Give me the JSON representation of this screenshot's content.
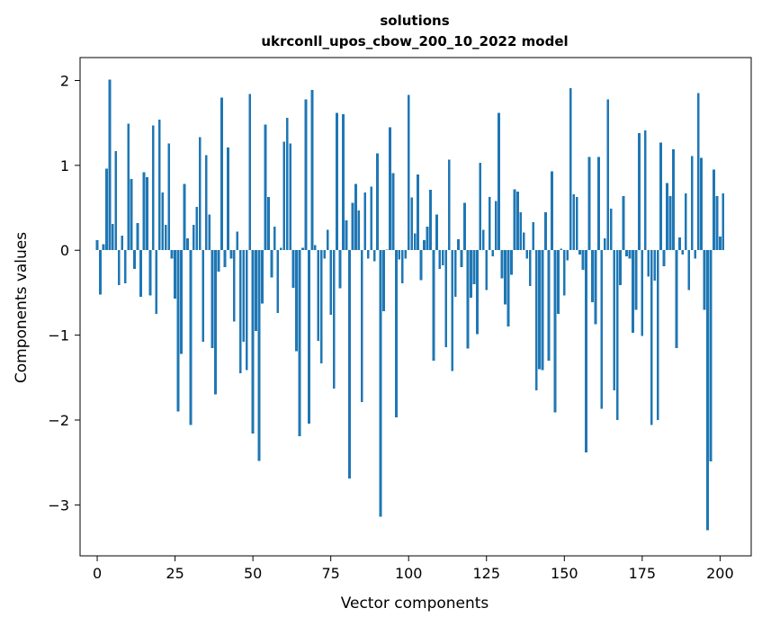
{
  "chart_data": {
    "type": "bar",
    "title": "solutions",
    "subtitle": "ukrconll_upos_cbow_200_10_2022 model",
    "xlabel": "Vector components",
    "ylabel": "Components values",
    "xlim": [
      -5.5,
      210
    ],
    "ylim": [
      -3.6,
      2.27
    ],
    "xticks": [
      0,
      25,
      50,
      75,
      100,
      125,
      150,
      175,
      200
    ],
    "yticks": [
      -3,
      -2,
      -1,
      0,
      1,
      2
    ],
    "bar_color": "#1f77b4",
    "grid": false,
    "values": [
      0.12,
      -0.52,
      0.07,
      0.96,
      2.01,
      0.31,
      1.17,
      -0.41,
      0.17,
      -0.39,
      1.49,
      0.84,
      -0.22,
      0.32,
      -0.55,
      0.92,
      0.86,
      -0.53,
      1.47,
      -0.75,
      1.54,
      0.68,
      0.3,
      1.26,
      -0.1,
      -0.57,
      -1.9,
      -1.22,
      0.78,
      0.14,
      -2.06,
      0.3,
      0.51,
      1.33,
      -1.08,
      1.12,
      0.42,
      -1.15,
      -1.7,
      -0.25,
      1.8,
      -0.2,
      1.21,
      -0.1,
      -0.84,
      0.22,
      -1.45,
      -1.08,
      -1.41,
      1.84,
      -2.16,
      -0.95,
      -2.48,
      -0.63,
      1.48,
      0.63,
      -0.32,
      0.28,
      -0.74,
      0.03,
      1.28,
      1.56,
      1.26,
      -0.44,
      -1.19,
      -2.19,
      0.03,
      1.78,
      -2.04,
      1.89,
      0.06,
      -1.07,
      -1.33,
      -0.1,
      0.24,
      -0.76,
      -1.63,
      1.62,
      -0.45,
      1.6,
      0.35,
      -2.69,
      0.56,
      0.78,
      0.47,
      -1.79,
      0.68,
      -0.1,
      0.75,
      -0.13,
      1.14,
      -3.14,
      -0.72,
      0.01,
      1.45,
      0.91,
      -1.97,
      -0.11,
      -0.39,
      -0.1,
      1.83,
      0.62,
      0.2,
      0.89,
      -0.35,
      0.12,
      0.28,
      0.71,
      -1.3,
      0.42,
      -0.22,
      -0.18,
      -1.14,
      1.07,
      -1.42,
      -0.55,
      0.13,
      -0.2,
      0.56,
      -1.16,
      -0.56,
      -0.4,
      -0.99,
      1.03,
      0.24,
      -0.47,
      0.63,
      -0.07,
      0.58,
      1.62,
      -0.33,
      -0.64,
      -0.9,
      -0.29,
      0.72,
      0.69,
      0.45,
      0.21,
      -0.1,
      -0.42,
      0.33,
      -1.65,
      -1.4,
      -1.41,
      0.45,
      -1.3,
      0.93,
      -1.91,
      -0.75,
      0.02,
      -0.53,
      -0.12,
      1.91,
      0.66,
      0.63,
      -0.05,
      -0.23,
      -2.38,
      1.1,
      -0.61,
      -0.87,
      1.1,
      -1.87,
      0.14,
      1.78,
      0.49,
      -1.65,
      -2.0,
      -0.41,
      0.64,
      -0.07,
      -0.1,
      -0.97,
      -0.7,
      1.38,
      -1.01,
      1.41,
      -0.31,
      -2.06,
      -0.36,
      -2.0,
      1.27,
      -0.19,
      0.79,
      0.64,
      1.19,
      -1.15,
      0.15,
      -0.05,
      0.67,
      -0.47,
      1.11,
      -0.1,
      1.85,
      1.09,
      -0.7,
      -3.3,
      -2.49,
      0.95,
      0.64,
      0.16,
      0.67
    ]
  }
}
